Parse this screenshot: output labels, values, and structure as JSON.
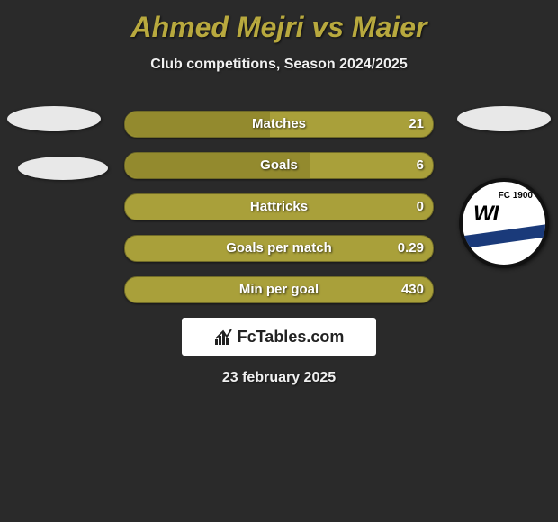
{
  "title": "Ahmed Mejri vs Maier",
  "subtitle": "Club competitions, Season 2024/2025",
  "date": "23 february 2025",
  "brand": "FcTables.com",
  "colors": {
    "background": "#2a2a2a",
    "title": "#b8a93e",
    "text": "#f0f0f0",
    "bar_bg": "#a9a03a",
    "bar_fill": "#938a2e",
    "bar_border": "#6f6a28",
    "ellipse": "#e8e8e8",
    "brand_box": "#ffffff"
  },
  "left_logo": {
    "has_ellipses": true
  },
  "right_logo": {
    "top_ellipse": true,
    "club_text_small": "FC 1900",
    "club_text_big": "WI",
    "stripe_color": "#1a3a7a"
  },
  "bars": [
    {
      "label": "Matches",
      "left": "",
      "right": "21",
      "fill_pct": 47
    },
    {
      "label": "Goals",
      "left": "",
      "right": "6",
      "fill_pct": 60
    },
    {
      "label": "Hattricks",
      "left": "",
      "right": "0",
      "fill_pct": 0
    },
    {
      "label": "Goals per match",
      "left": "",
      "right": "0.29",
      "fill_pct": 0
    },
    {
      "label": "Min per goal",
      "left": "",
      "right": "430",
      "fill_pct": 0
    }
  ]
}
